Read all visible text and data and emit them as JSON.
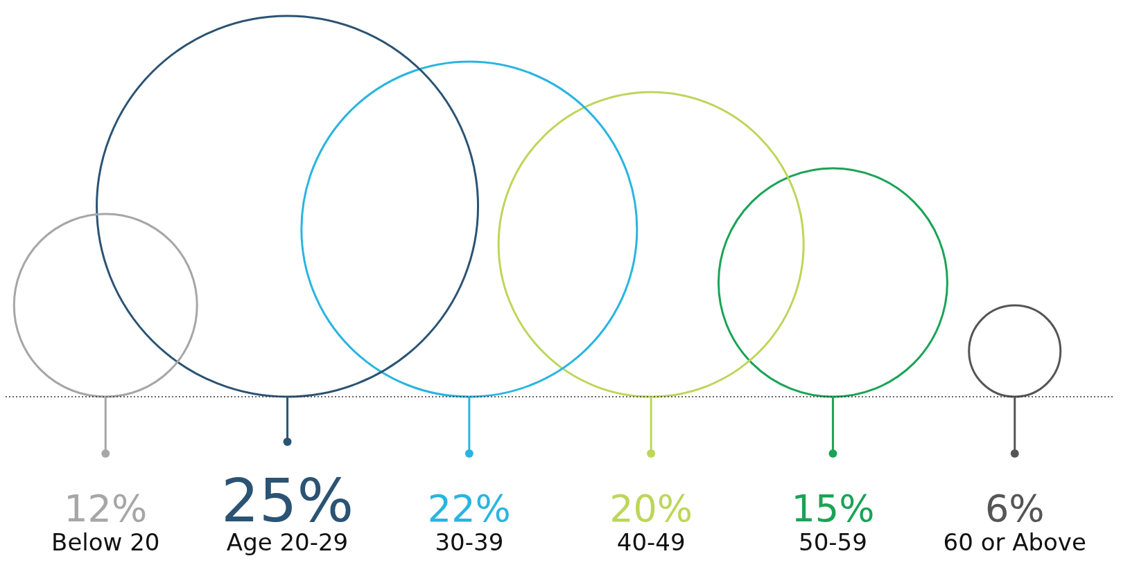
{
  "chart_data": {
    "type": "other",
    "categories": [
      "Below 20",
      "Age 20-29",
      "30-39",
      "40-49",
      "50-59",
      "60 or Above"
    ],
    "values": [
      12,
      25,
      22,
      20,
      15,
      6
    ],
    "value_labels": [
      "12%",
      "25%",
      "22%",
      "20%",
      "15%",
      "6%"
    ],
    "colors": [
      "#a6a6a6",
      "#2b5373",
      "#29b5e0",
      "#bcd65a",
      "#1aa356",
      "#555555"
    ]
  }
}
